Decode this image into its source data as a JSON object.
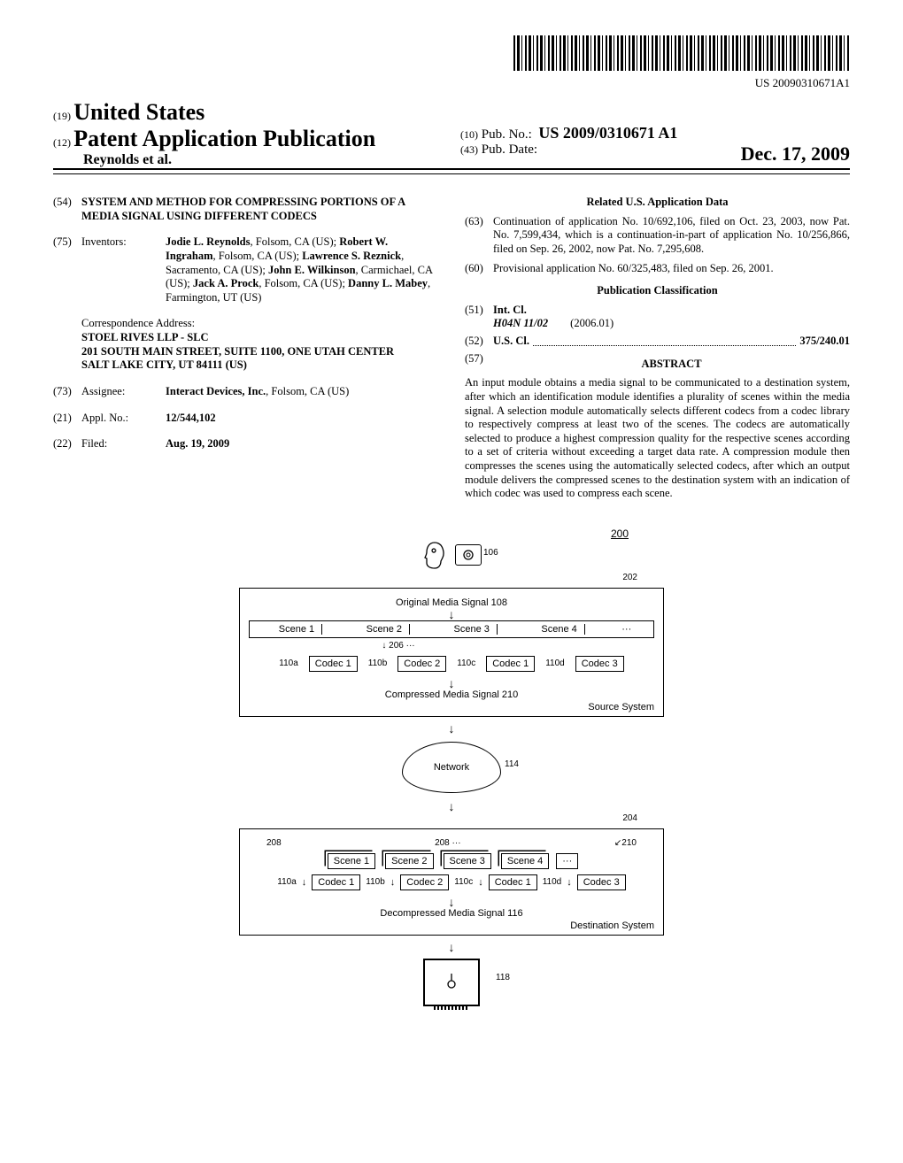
{
  "barcode_number": "US 20090310671A1",
  "header": {
    "num19": "(19)",
    "country": "United States",
    "num12": "(12)",
    "pub_type": "Patent Application Publication",
    "authors_line": "Reynolds et al.",
    "num10": "(10)",
    "pub_no_label": "Pub. No.:",
    "pub_no": "US 2009/0310671 A1",
    "num43": "(43)",
    "pub_date_label": "Pub. Date:",
    "pub_date": "Dec. 17, 2009"
  },
  "left": {
    "n54": "(54)",
    "title": "SYSTEM AND METHOD FOR COMPRESSING PORTIONS OF A MEDIA SIGNAL USING DIFFERENT CODECS",
    "n75": "(75)",
    "inventors_label": "Inventors:",
    "inventors_html": "<b>Jodie L. Reynolds</b>, Folsom, CA (US); <b>Robert W. Ingraham</b>, Folsom, CA (US); <b>Lawrence S. Reznick</b>, Sacramento, CA (US); <b>John E. Wilkinson</b>, Carmichael, CA (US); <b>Jack A. Prock</b>, Folsom, CA (US); <b>Danny L. Mabey</b>, Farmington, UT (US)",
    "corr_label": "Correspondence Address:",
    "corr1": "STOEL RIVES LLP - SLC",
    "corr2": "201 SOUTH MAIN STREET, SUITE 1100, ONE UTAH CENTER",
    "corr3": "SALT LAKE CITY, UT 84111 (US)",
    "n73": "(73)",
    "assignee_label": "Assignee:",
    "assignee": "<b>Interact Devices, Inc.</b>, Folsom, CA (US)",
    "n21": "(21)",
    "appl_label": "Appl. No.:",
    "appl_no": "12/544,102",
    "n22": "(22)",
    "filed_label": "Filed:",
    "filed": "Aug. 19, 2009"
  },
  "right": {
    "related_head": "Related U.S. Application Data",
    "n63": "(63)",
    "cont": "Continuation of application No. 10/692,106, filed on Oct. 23, 2003, now Pat. No. 7,599,434, which is a continuation-in-part of application No. 10/256,866, filed on Sep. 26, 2002, now Pat. No. 7,295,608.",
    "n60": "(60)",
    "prov": "Provisional application No. 60/325,483, filed on Sep. 26, 2001.",
    "class_head": "Publication Classification",
    "n51": "(51)",
    "intcl_label": "Int. Cl.",
    "intcl_code": "H04N 11/02",
    "intcl_date": "(2006.01)",
    "n52": "(52)",
    "uscl_label": "U.S. Cl.",
    "uscl_val": "375/240.01",
    "n57": "(57)",
    "abstract_head": "ABSTRACT",
    "abstract": "An input module obtains a media signal to be communicated to a destination system, after which an identification module identifies a plurality of scenes within the media signal. A selection module automatically selects different codecs from a codec library to respectively compress at least two of the scenes. The codecs are automatically selected to produce a highest compression quality for the respective scenes according to a set of criteria without exceeding a target data rate. A compression module then compresses the scenes using the automatically selected codecs, after which an output module delivers the compressed scenes to the destination system with an indication of which codec was used to compress each scene."
  },
  "figure": {
    "ref200": "200",
    "ref106": "106",
    "ref202": "202",
    "orig_signal": "Original Media Signal 108",
    "scenes": [
      "Scene 1",
      "Scene 2",
      "Scene 3",
      "Scene 4"
    ],
    "ellipsis": "···",
    "ref206": "206",
    "codec_refs": [
      "110a",
      "110b",
      "110c",
      "110d"
    ],
    "codecs_top": [
      "Codec 1",
      "Codec 2",
      "Codec 1",
      "Codec 3"
    ],
    "compressed": "Compressed Media Signal 210",
    "source_sys": "Source System",
    "network": "Network",
    "ref114": "114",
    "ref204": "204",
    "ref208a": "208",
    "ref208b": "208",
    "ref210": "210",
    "codecs_bot": [
      "Codec 1",
      "Codec 2",
      "Codec 1",
      "Codec 3"
    ],
    "decompressed": "Decompressed Media Signal 116",
    "dest_sys": "Destination System",
    "ref118": "118"
  }
}
